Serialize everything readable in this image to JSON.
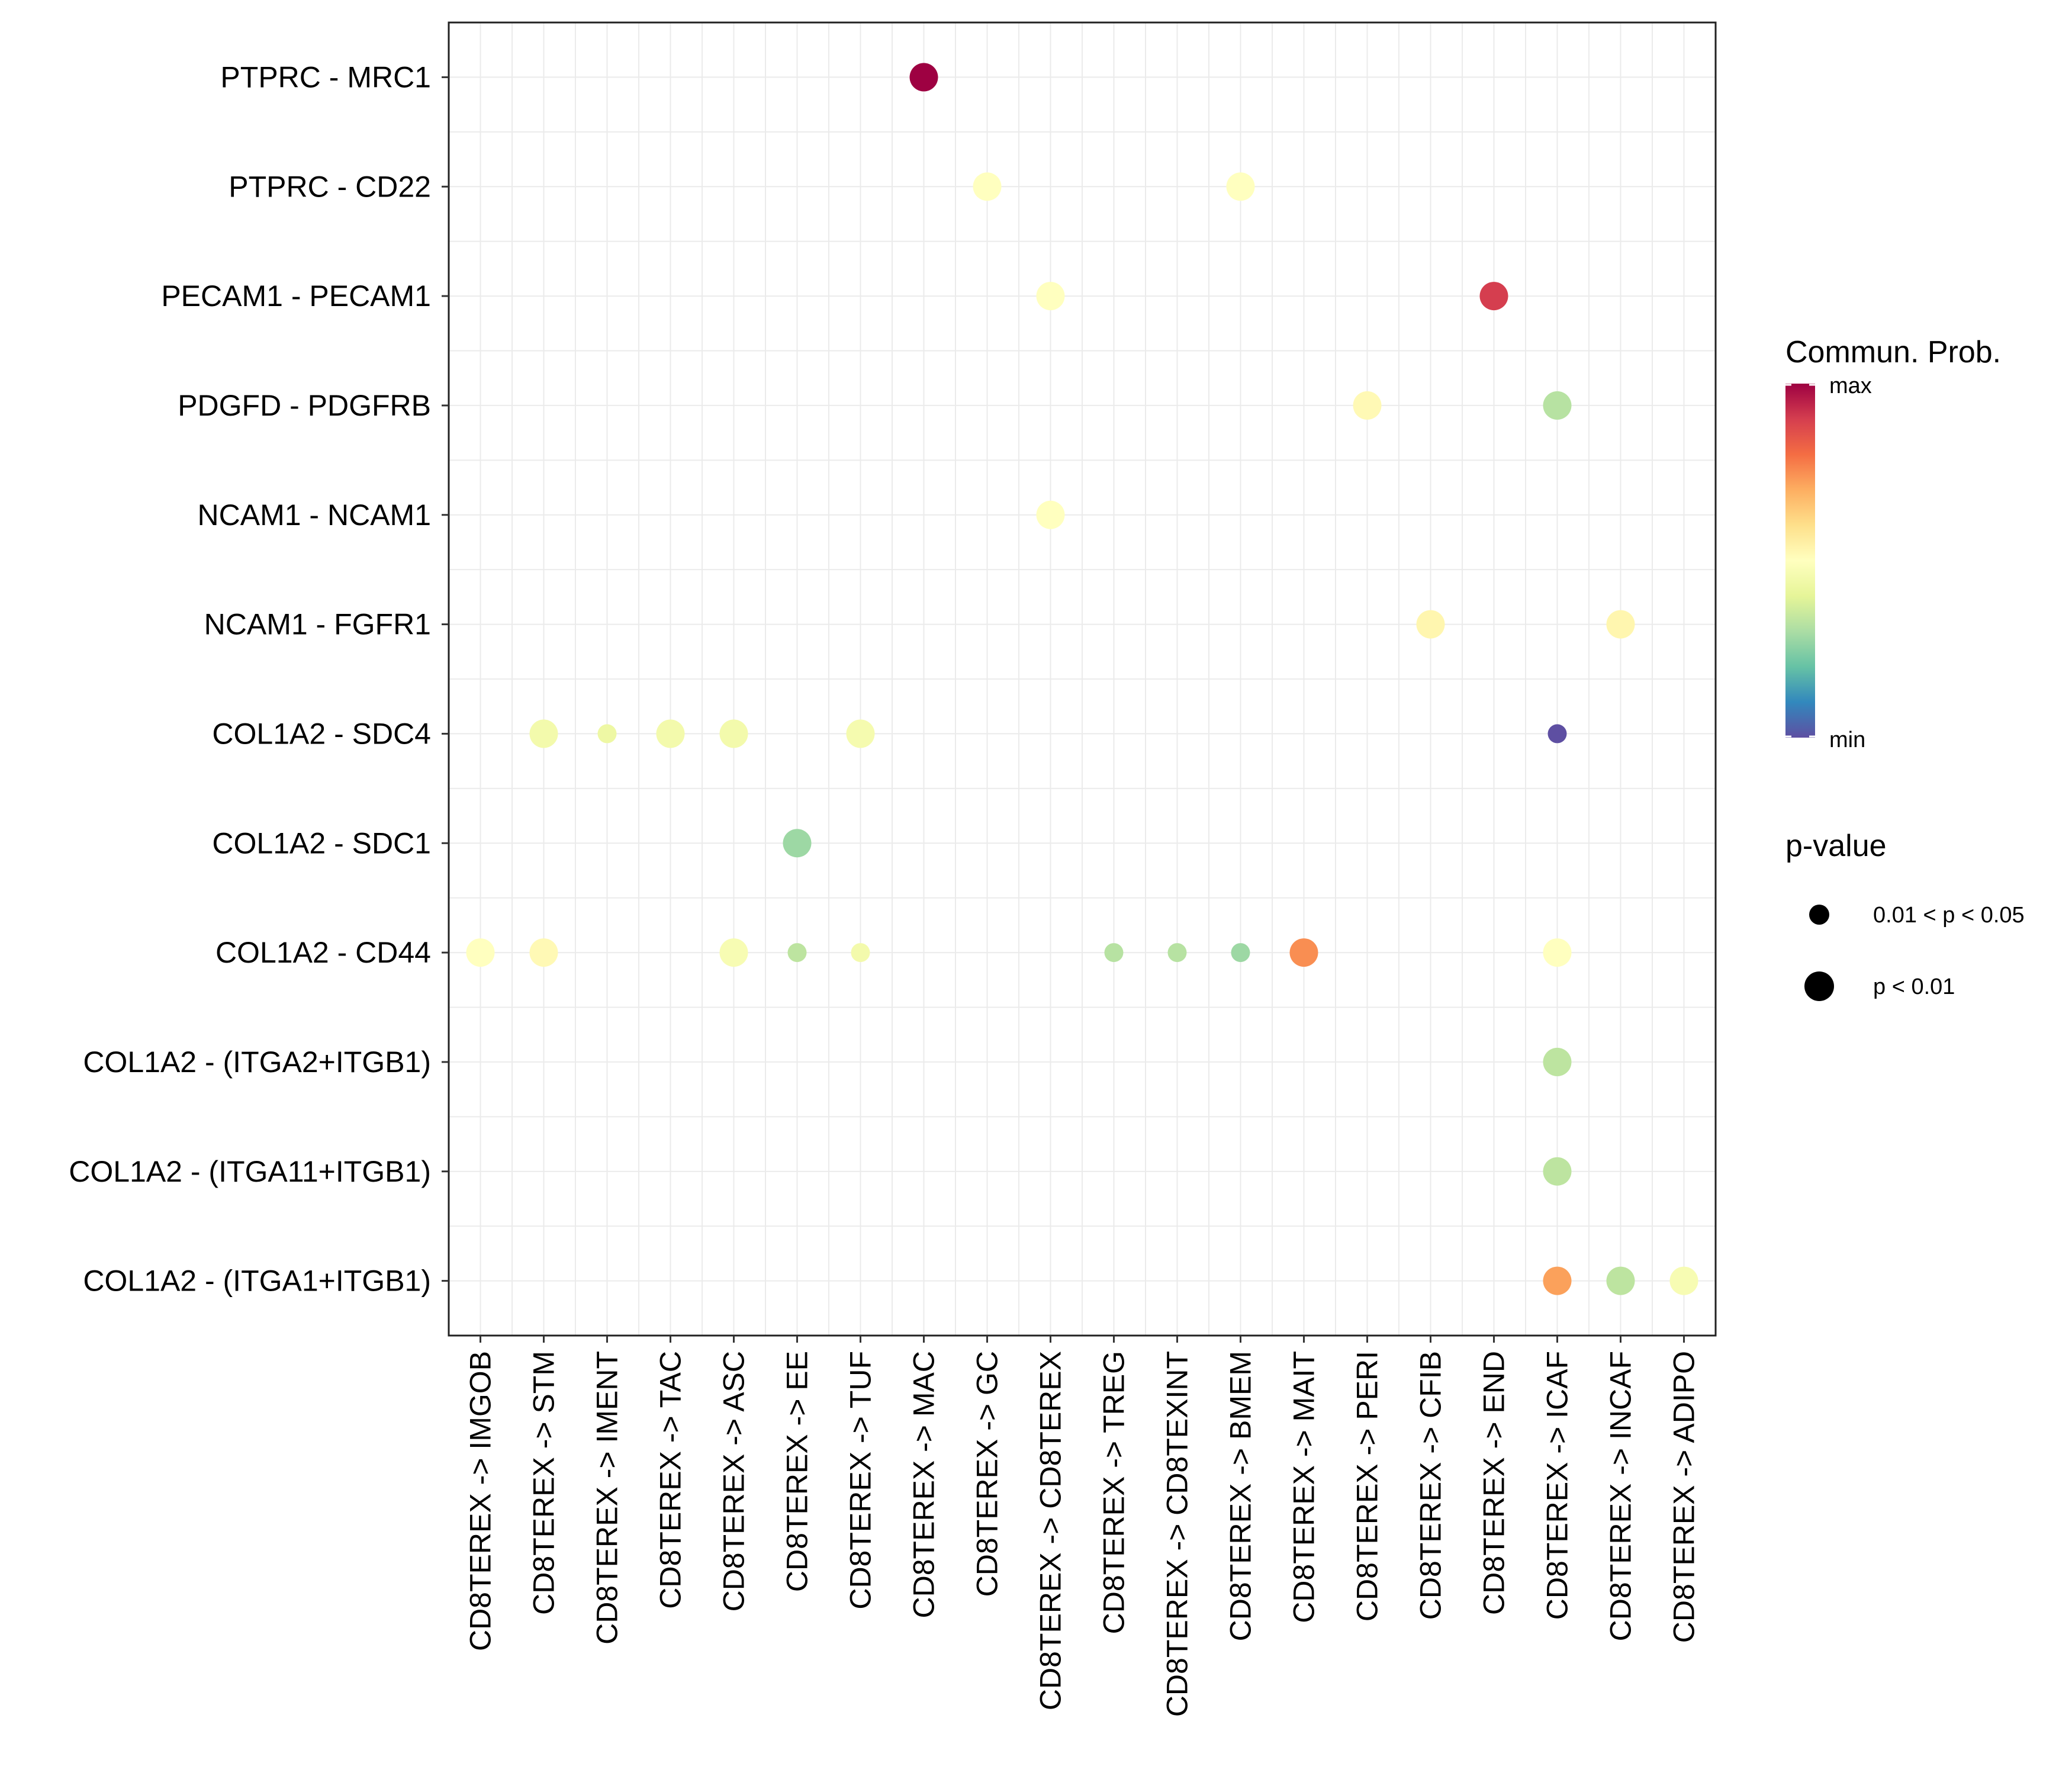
{
  "chart_data": {
    "type": "scatter",
    "subtype": "bubble-dot-plot",
    "y_categories": [
      "PTPRC - MRC1",
      "PTPRC - CD22",
      "PECAM1 - PECAM1",
      "PDGFD - PDGFRB",
      "NCAM1 - NCAM1",
      "NCAM1 - FGFR1",
      "COL1A2 - SDC4",
      "COL1A2 - SDC1",
      "COL1A2 - CD44",
      "COL1A2 - (ITGA2+ITGB1)",
      "COL1A2 - (ITGA11+ITGB1)",
      "COL1A2 - (ITGA1+ITGB1)"
    ],
    "x_categories": [
      "CD8TEREX -> IMGOB",
      "CD8TEREX -> STM",
      "CD8TEREX -> IMENT",
      "CD8TEREX -> TAC",
      "CD8TEREX -> ASC",
      "CD8TEREX -> EE",
      "CD8TEREX -> TUF",
      "CD8TEREX -> MAC",
      "CD8TEREX -> GC",
      "CD8TEREX -> CD8TEREX",
      "CD8TEREX -> TREG",
      "CD8TEREX -> CD8TEXINT",
      "CD8TEREX -> BMEM",
      "CD8TEREX -> MAIT",
      "CD8TEREX -> PERI",
      "CD8TEREX -> CFIB",
      "CD8TEREX -> END",
      "CD8TEREX -> ICAF",
      "CD8TEREX -> INCAF",
      "CD8TEREX -> ADIPO"
    ],
    "points": [
      {
        "y": "PTPRC - MRC1",
        "x": "CD8TEREX -> MAC",
        "prob": 1.0,
        "pval_class": "p < 0.01"
      },
      {
        "y": "PTPRC - CD22",
        "x": "CD8TEREX -> GC",
        "prob": 0.5,
        "pval_class": "p < 0.01"
      },
      {
        "y": "PTPRC - CD22",
        "x": "CD8TEREX -> BMEM",
        "prob": 0.5,
        "pval_class": "p < 0.01"
      },
      {
        "y": "PECAM1 - PECAM1",
        "x": "CD8TEREX -> CD8TEREX",
        "prob": 0.5,
        "pval_class": "p < 0.01"
      },
      {
        "y": "PECAM1 - PECAM1",
        "x": "CD8TEREX -> END",
        "prob": 0.9,
        "pval_class": "p < 0.01"
      },
      {
        "y": "PDGFD - PDGFRB",
        "x": "CD8TEREX -> PERI",
        "prob": 0.52,
        "pval_class": "p < 0.01"
      },
      {
        "y": "PDGFD - PDGFRB",
        "x": "CD8TEREX -> ICAF",
        "prob": 0.32,
        "pval_class": "p < 0.01"
      },
      {
        "y": "NCAM1 - NCAM1",
        "x": "CD8TEREX -> CD8TEREX",
        "prob": 0.5,
        "pval_class": "p < 0.01"
      },
      {
        "y": "NCAM1 - FGFR1",
        "x": "CD8TEREX -> CFIB",
        "prob": 0.53,
        "pval_class": "p < 0.01"
      },
      {
        "y": "NCAM1 - FGFR1",
        "x": "CD8TEREX -> INCAF",
        "prob": 0.53,
        "pval_class": "p < 0.01"
      },
      {
        "y": "COL1A2 - SDC4",
        "x": "CD8TEREX -> STM",
        "prob": 0.45,
        "pval_class": "p < 0.01"
      },
      {
        "y": "COL1A2 - SDC4",
        "x": "CD8TEREX -> IMENT",
        "prob": 0.43,
        "pval_class": "0.01 < p < 0.05"
      },
      {
        "y": "COL1A2 - SDC4",
        "x": "CD8TEREX -> TAC",
        "prob": 0.45,
        "pval_class": "p < 0.01"
      },
      {
        "y": "COL1A2 - SDC4",
        "x": "CD8TEREX -> ASC",
        "prob": 0.45,
        "pval_class": "p < 0.01"
      },
      {
        "y": "COL1A2 - SDC4",
        "x": "CD8TEREX -> TUF",
        "prob": 0.46,
        "pval_class": "p < 0.01"
      },
      {
        "y": "COL1A2 - SDC4",
        "x": "CD8TEREX -> ICAF",
        "prob": 0.0,
        "pval_class": "0.01 < p < 0.05"
      },
      {
        "y": "COL1A2 - SDC1",
        "x": "CD8TEREX -> EE",
        "prob": 0.28,
        "pval_class": "p < 0.01"
      },
      {
        "y": "COL1A2 - CD44",
        "x": "CD8TEREX -> IMGOB",
        "prob": 0.5,
        "pval_class": "p < 0.01"
      },
      {
        "y": "COL1A2 - CD44",
        "x": "CD8TEREX -> STM",
        "prob": 0.52,
        "pval_class": "p < 0.01"
      },
      {
        "y": "COL1A2 - CD44",
        "x": "CD8TEREX -> ASC",
        "prob": 0.47,
        "pval_class": "p < 0.01"
      },
      {
        "y": "COL1A2 - CD44",
        "x": "CD8TEREX -> EE",
        "prob": 0.33,
        "pval_class": "0.01 < p < 0.05"
      },
      {
        "y": "COL1A2 - CD44",
        "x": "CD8TEREX -> TUF",
        "prob": 0.45,
        "pval_class": "0.01 < p < 0.05"
      },
      {
        "y": "COL1A2 - CD44",
        "x": "CD8TEREX -> TREG",
        "prob": 0.32,
        "pval_class": "0.01 < p < 0.05"
      },
      {
        "y": "COL1A2 - CD44",
        "x": "CD8TEREX -> CD8TEXINT",
        "prob": 0.32,
        "pval_class": "0.01 < p < 0.05"
      },
      {
        "y": "COL1A2 - CD44",
        "x": "CD8TEREX -> BMEM",
        "prob": 0.28,
        "pval_class": "0.01 < p < 0.05"
      },
      {
        "y": "COL1A2 - CD44",
        "x": "CD8TEREX -> MAIT",
        "prob": 0.75,
        "pval_class": "p < 0.01"
      },
      {
        "y": "COL1A2 - CD44",
        "x": "CD8TEREX -> ICAF",
        "prob": 0.5,
        "pval_class": "p < 0.01"
      },
      {
        "y": "COL1A2 - (ITGA2+ITGB1)",
        "x": "CD8TEREX -> ICAF",
        "prob": 0.33,
        "pval_class": "p < 0.01"
      },
      {
        "y": "COL1A2 - (ITGA11+ITGB1)",
        "x": "CD8TEREX -> ICAF",
        "prob": 0.33,
        "pval_class": "p < 0.01"
      },
      {
        "y": "COL1A2 - (ITGA1+ITGB1)",
        "x": "CD8TEREX -> ICAF",
        "prob": 0.72,
        "pval_class": "p < 0.01"
      },
      {
        "y": "COL1A2 - (ITGA1+ITGB1)",
        "x": "CD8TEREX -> INCAF",
        "prob": 0.33,
        "pval_class": "p < 0.01"
      },
      {
        "y": "COL1A2 - (ITGA1+ITGB1)",
        "x": "CD8TEREX -> ADIPO",
        "prob": 0.47,
        "pval_class": "p < 0.01"
      }
    ],
    "color_legend": {
      "title": "Commun. Prob.",
      "max_label": "max",
      "min_label": "min",
      "palette": [
        "#5E4FA2",
        "#3288BD",
        "#66C2A5",
        "#ABDDA4",
        "#E6F598",
        "#FFFFBF",
        "#FEE08B",
        "#FDAE61",
        "#F46D43",
        "#D53E4F",
        "#9E0142"
      ]
    },
    "size_legend": {
      "title": "p-value",
      "entries": [
        "0.01 < p < 0.05",
        "p < 0.01"
      ]
    },
    "grid": true
  }
}
